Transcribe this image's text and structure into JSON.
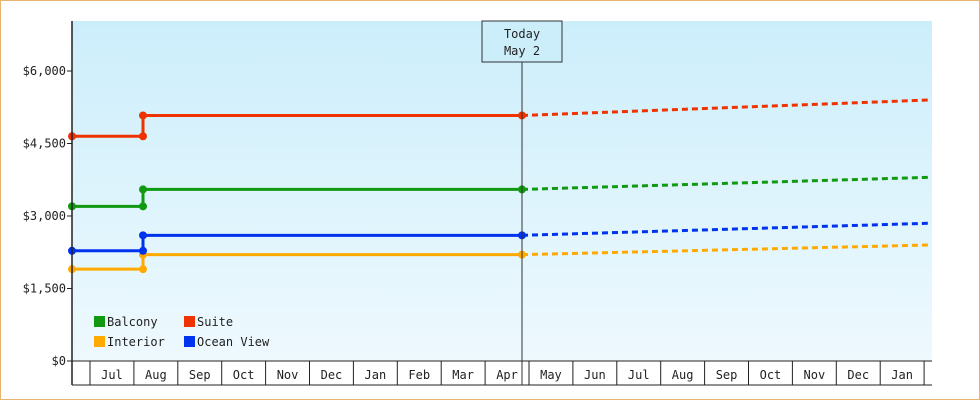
{
  "chart_data": {
    "type": "line",
    "title": "",
    "xlabel": "",
    "ylabel": "",
    "ylim": [
      0,
      7000
    ],
    "y_ticks": [
      {
        "value": 0,
        "label": "$0"
      },
      {
        "value": 1500,
        "label": "$1,500"
      },
      {
        "value": 3000,
        "label": "$3,000"
      },
      {
        "value": 4500,
        "label": "$4,500"
      },
      {
        "value": 6000,
        "label": "$6,000"
      }
    ],
    "x_months": [
      "Jul",
      "Aug",
      "Sep",
      "Oct",
      "Nov",
      "Dec",
      "Jan",
      "Feb",
      "Mar",
      "Apr",
      "May",
      "Jun",
      "Jul",
      "Aug",
      "Sep",
      "Oct",
      "Nov",
      "Dec",
      "Jan"
    ],
    "today_marker": {
      "line1": "Today",
      "line2": "May 2"
    },
    "legend_placement": "bottom-left",
    "grid": false,
    "colors": {
      "background_top": "#cceefb",
      "background_bottom": "#eef9fe",
      "frame": "#e8b46e"
    },
    "series": [
      {
        "name": "Balcony",
        "color": "#119911",
        "history": [
          3200,
          3200,
          3550,
          3550
        ],
        "forecast": [
          3550,
          3800
        ]
      },
      {
        "name": "Suite",
        "color": "#ee3300",
        "history": [
          4650,
          4650,
          5080,
          5080
        ],
        "forecast": [
          5080,
          5400
        ]
      },
      {
        "name": "Interior",
        "color": "#ffaa00",
        "history": [
          1900,
          1900,
          2200,
          2200
        ],
        "forecast": [
          2200,
          2400
        ]
      },
      {
        "name": "Ocean View",
        "color": "#0033ee",
        "history": [
          2280,
          2280,
          2600,
          2600
        ],
        "forecast": [
          2600,
          2850
        ]
      }
    ]
  }
}
